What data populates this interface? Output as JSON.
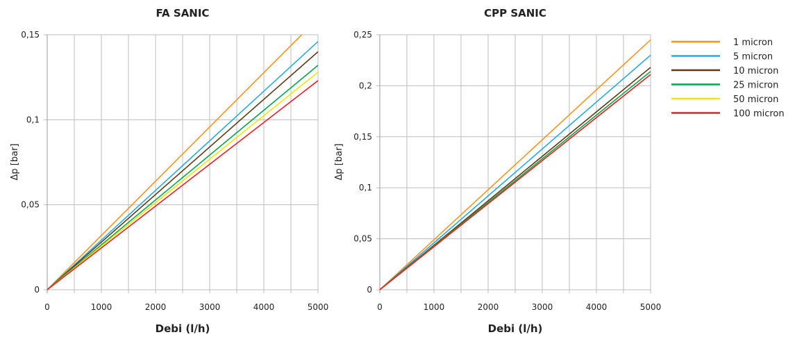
{
  "legend": {
    "entries": [
      {
        "name": "1 micron",
        "color": "#f7941d"
      },
      {
        "name": "5 micron",
        "color": "#27aae1"
      },
      {
        "name": "10 micron",
        "color": "#603913"
      },
      {
        "name": "25 micron",
        "color": "#00a651"
      },
      {
        "name": "50 micron",
        "color": "#f2e600"
      },
      {
        "name": "100 micron",
        "color": "#ed1c24"
      }
    ]
  },
  "chart_data": [
    {
      "type": "line",
      "title": "FA SANIC",
      "xlabel": "Debi (l/h)",
      "ylabel": "Δp  [bar]",
      "xlim": [
        0,
        5000
      ],
      "ylim": [
        0,
        0.15
      ],
      "x_ticks": [
        0,
        1000,
        2000,
        3000,
        4000,
        5000
      ],
      "x_tick_labels": [
        "0",
        "1000",
        "2000",
        "3000",
        "4000",
        "5000"
      ],
      "y_ticks": [
        0,
        0.05,
        0.1,
        0.15
      ],
      "y_tick_labels": [
        "0",
        "0,05",
        "0,1",
        "0,15"
      ],
      "x_gridlines": [
        0,
        500,
        1000,
        1500,
        2000,
        2500,
        3000,
        3500,
        4000,
        4500,
        5000
      ],
      "grid": true,
      "series": [
        {
          "name": "1 micron",
          "color": "#f7941d",
          "x": [
            0,
            4700
          ],
          "y": [
            0,
            0.15
          ]
        },
        {
          "name": "5 micron",
          "color": "#27aae1",
          "x": [
            0,
            5000
          ],
          "y": [
            0,
            0.146
          ]
        },
        {
          "name": "10 micron",
          "color": "#603913",
          "x": [
            0,
            5000
          ],
          "y": [
            0,
            0.14
          ]
        },
        {
          "name": "25 micron",
          "color": "#00a651",
          "x": [
            0,
            5000
          ],
          "y": [
            0,
            0.132
          ]
        },
        {
          "name": "50 micron",
          "color": "#f2e600",
          "x": [
            0,
            5000
          ],
          "y": [
            0,
            0.128
          ]
        },
        {
          "name": "100 micron",
          "color": "#ed1c24",
          "x": [
            0,
            5000
          ],
          "y": [
            0,
            0.123
          ]
        }
      ]
    },
    {
      "type": "line",
      "title": "CPP SANIC",
      "xlabel": "Debi (l/h)",
      "ylabel": "Δp  [bar]",
      "xlim": [
        0,
        5000
      ],
      "ylim": [
        0,
        0.25
      ],
      "x_ticks": [
        0,
        1000,
        2000,
        3000,
        4000,
        5000
      ],
      "x_tick_labels": [
        "0",
        "1000",
        "2000",
        "3000",
        "4000",
        "5000"
      ],
      "y_ticks": [
        0,
        0.05,
        0.1,
        0.15,
        0.2,
        0.25
      ],
      "y_tick_labels": [
        "0",
        "0,05",
        "0,1",
        "0,15",
        "0,2",
        "0,25"
      ],
      "x_gridlines": [
        0,
        500,
        1000,
        1500,
        2000,
        2500,
        3000,
        3500,
        4000,
        4500,
        5000
      ],
      "grid": true,
      "series": [
        {
          "name": "1 micron",
          "color": "#f7941d",
          "x": [
            0,
            5000
          ],
          "y": [
            0,
            0.245
          ]
        },
        {
          "name": "5 micron",
          "color": "#27aae1",
          "x": [
            0,
            5000
          ],
          "y": [
            0,
            0.23
          ]
        },
        {
          "name": "10 micron",
          "color": "#603913",
          "x": [
            0,
            5000
          ],
          "y": [
            0,
            0.218
          ]
        },
        {
          "name": "25 micron",
          "color": "#00a651",
          "x": [
            0,
            5000
          ],
          "y": [
            0,
            0.214
          ]
        },
        {
          "name": "50 micron",
          "color": "#f2e600",
          "x": [
            0,
            5000
          ],
          "y": [
            0,
            0.211
          ]
        },
        {
          "name": "100 micron",
          "color": "#ed1c24",
          "x": [
            0,
            5000
          ],
          "y": [
            0,
            0.211
          ]
        }
      ]
    }
  ]
}
